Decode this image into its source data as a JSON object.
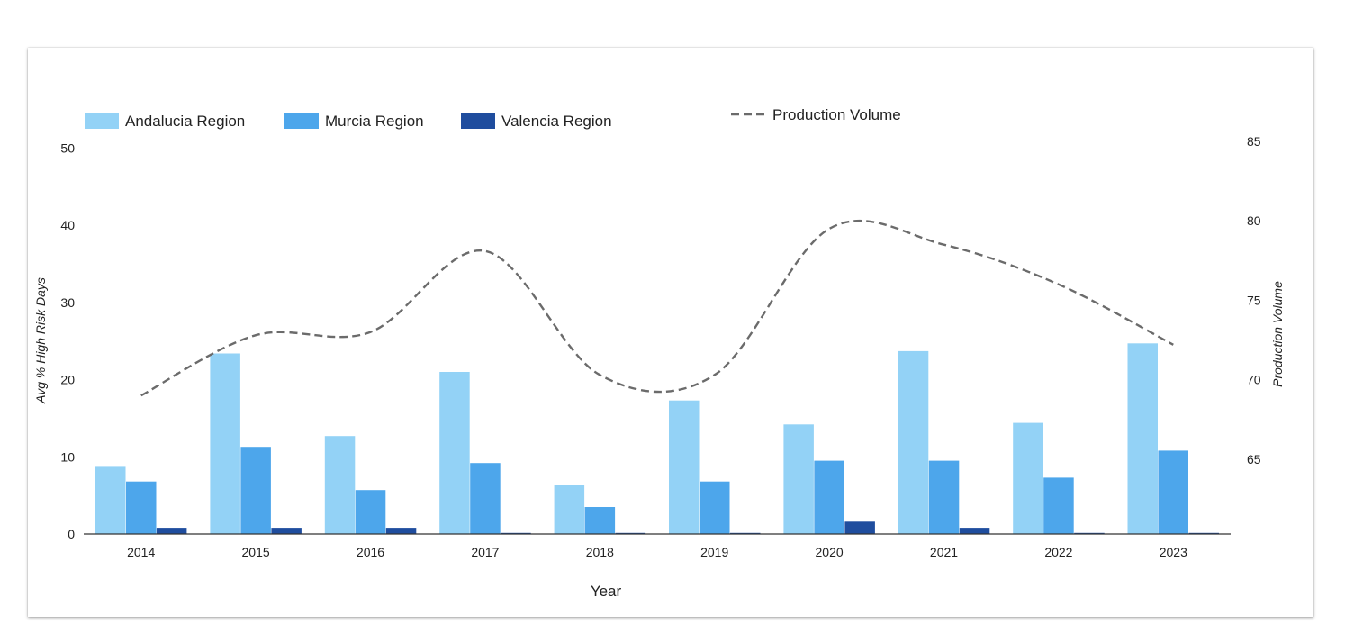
{
  "chart_data": {
    "type": "bar",
    "categories": [
      "2014",
      "2015",
      "2016",
      "2017",
      "2018",
      "2019",
      "2020",
      "2021",
      "2022",
      "2023"
    ],
    "xlabel": "Year",
    "ylabel": "Avg % High Risk Days",
    "ylim": [
      0,
      50
    ],
    "yticks": [
      "0",
      "10",
      "20",
      "30",
      "40",
      "50"
    ],
    "series": [
      {
        "name": "Andalucia Region",
        "color": "#93d2f6",
        "values": [
          8.7,
          23.4,
          12.7,
          21.0,
          6.3,
          17.3,
          14.2,
          23.7,
          14.4,
          24.7
        ]
      },
      {
        "name": "Murcia Region",
        "color": "#4da6eb",
        "values": [
          6.8,
          11.3,
          5.7,
          9.2,
          3.5,
          6.8,
          9.5,
          9.5,
          7.3,
          10.8
        ]
      },
      {
        "name": "Valencia Region",
        "color": "#1f4d9e",
        "values": [
          0.8,
          0.8,
          0.8,
          0.1,
          0.1,
          0.1,
          1.6,
          0.8,
          0.1,
          0.1
        ]
      }
    ],
    "line_series": {
      "name": "Production Volume",
      "color": "#6b6b6b",
      "style": "dashed",
      "axis": "right",
      "values": [
        69.0,
        72.8,
        73.0,
        78.1,
        70.3,
        70.3,
        79.5,
        78.5,
        76.0,
        72.2
      ]
    },
    "y2label": "Production Volume",
    "y2lim": [
      60,
      85
    ],
    "y2ticks": [
      "65",
      "70",
      "75",
      "80",
      "85"
    ],
    "legend_position": "top",
    "grid": false
  }
}
